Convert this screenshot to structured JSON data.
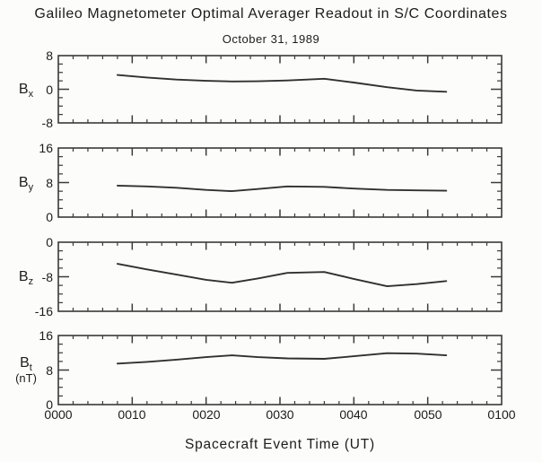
{
  "chart_data": {
    "type": "line",
    "title": "Galileo Magnetometer Optimal Averager Readout in S/C Coordinates",
    "subtitle": "October 31, 1989",
    "xlabel": "Spacecraft Event Time (UT)",
    "legend": "none",
    "grid": "off",
    "x_axis": {
      "range_minutes": [
        0,
        60
      ],
      "major_tick_minutes": [
        0,
        10,
        20,
        30,
        40,
        50,
        60
      ],
      "major_tick_labels": [
        "0000",
        "0010",
        "0020",
        "0030",
        "0040",
        "0050",
        "0100"
      ],
      "minor_tick_step_minutes": 2
    },
    "panels": [
      {
        "name": "Bx",
        "label_base": "B",
        "label_sub": "x",
        "unit": "",
        "ylim": [
          -8,
          8
        ],
        "y_major_tick": 0,
        "y_minor_step": 2,
        "yticks": [
          {
            "value": 8,
            "label": "8"
          },
          {
            "value": 0,
            "label": "0"
          },
          {
            "value": -8,
            "label": "-8"
          }
        ],
        "series": {
          "t_minutes": [
            8,
            12,
            16,
            20,
            23.5,
            27,
            31,
            36,
            40,
            44.5,
            48.5,
            52.5
          ],
          "b_nT": [
            3.4,
            2.8,
            2.3,
            2.0,
            1.85,
            1.9,
            2.1,
            2.5,
            1.6,
            0.5,
            -0.3,
            -0.6
          ]
        }
      },
      {
        "name": "By",
        "label_base": "B",
        "label_sub": "y",
        "unit": "",
        "ylim": [
          0,
          16
        ],
        "y_major_tick": 8,
        "y_minor_step": 2,
        "yticks": [
          {
            "value": 16,
            "label": "16"
          },
          {
            "value": 8,
            "label": "8"
          },
          {
            "value": 0,
            "label": "0"
          }
        ],
        "series": {
          "t_minutes": [
            8,
            12,
            16,
            20,
            23.5,
            27,
            31,
            36,
            40,
            44.5,
            48.5,
            52.5
          ],
          "b_nT": [
            7.3,
            7.1,
            6.8,
            6.3,
            6.0,
            6.5,
            7.1,
            7.0,
            6.6,
            6.3,
            6.2,
            6.1
          ]
        }
      },
      {
        "name": "Bz",
        "label_base": "B",
        "label_sub": "z",
        "unit": "",
        "ylim": [
          -16,
          0
        ],
        "y_major_tick": -8,
        "y_minor_step": 2,
        "yticks": [
          {
            "value": 0,
            "label": "0"
          },
          {
            "value": -8,
            "label": "-8"
          },
          {
            "value": -16,
            "label": "-16"
          }
        ],
        "series": {
          "t_minutes": [
            8,
            12,
            16,
            20,
            23.5,
            27,
            31,
            36,
            40,
            44.5,
            48.5,
            52.5
          ],
          "b_nT": [
            -5.0,
            -6.3,
            -7.5,
            -8.7,
            -9.4,
            -8.4,
            -7.1,
            -6.9,
            -8.5,
            -10.2,
            -9.7,
            -9.0
          ]
        }
      },
      {
        "name": "Bt",
        "label_base": "B",
        "label_sub": "t",
        "unit": "(nT)",
        "ylim": [
          0,
          16
        ],
        "y_major_tick": 8,
        "y_minor_step": 2,
        "yticks": [
          {
            "value": 16,
            "label": "16"
          },
          {
            "value": 8,
            "label": "8"
          },
          {
            "value": 0,
            "label": "0"
          }
        ],
        "series": {
          "t_minutes": [
            8,
            12,
            16,
            20,
            23.5,
            27,
            31,
            36,
            40,
            44.5,
            48.5,
            52.5
          ],
          "b_nT": [
            9.5,
            9.9,
            10.4,
            11.0,
            11.4,
            11.0,
            10.7,
            10.6,
            11.2,
            11.9,
            11.8,
            11.4
          ]
        }
      }
    ],
    "colors": {
      "axis": "#3a3a3a",
      "series_line": "#303030",
      "text": "#1c1c1c",
      "background": "#fcfcfa"
    }
  }
}
